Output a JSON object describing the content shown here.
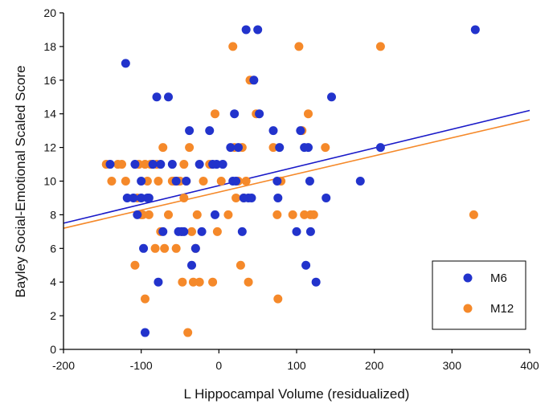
{
  "chart_data": {
    "type": "scatter",
    "title": "",
    "xlabel": "L Hippocampal Volume (residualized)",
    "ylabel": "Bayley Social-Emotional Scaled Score",
    "xlim": [
      -200,
      400
    ],
    "ylim": [
      0,
      20
    ],
    "xticks": [
      -200,
      -100,
      0,
      100,
      200,
      300,
      400
    ],
    "yticks": [
      0,
      2,
      4,
      6,
      8,
      10,
      12,
      14,
      16,
      18,
      20
    ],
    "x_tick_labels": [
      "-200",
      "-100",
      "0",
      "100",
      "200",
      "300",
      "400"
    ],
    "y_tick_labels": [
      "0",
      "2",
      "4",
      "6",
      "8",
      "10",
      "12",
      "14",
      "16",
      "18",
      "20"
    ],
    "grid": false,
    "legend_position": "bottom-right",
    "series": [
      {
        "name": "M6",
        "color": "#2233cc",
        "points": [
          [
            -140,
            11
          ],
          [
            -120,
            17
          ],
          [
            -118,
            9
          ],
          [
            -110,
            9
          ],
          [
            -108,
            11
          ],
          [
            -105,
            8
          ],
          [
            -100,
            10
          ],
          [
            -100,
            9
          ],
          [
            -97,
            6
          ],
          [
            -95,
            1
          ],
          [
            -92,
            9
          ],
          [
            -90,
            9
          ],
          [
            -85,
            11
          ],
          [
            -80,
            15
          ],
          [
            -78,
            4
          ],
          [
            -75,
            11
          ],
          [
            -72,
            7
          ],
          [
            -65,
            15
          ],
          [
            -60,
            11
          ],
          [
            -55,
            10
          ],
          [
            -52,
            7
          ],
          [
            -48,
            7
          ],
          [
            -45,
            7
          ],
          [
            -42,
            10
          ],
          [
            -38,
            13
          ],
          [
            -35,
            5
          ],
          [
            -30,
            6
          ],
          [
            -25,
            11
          ],
          [
            -22,
            7
          ],
          [
            -12,
            13
          ],
          [
            -8,
            11
          ],
          [
            -5,
            8
          ],
          [
            -3,
            11
          ],
          [
            5,
            11
          ],
          [
            15,
            12
          ],
          [
            18,
            10
          ],
          [
            20,
            14
          ],
          [
            22,
            10
          ],
          [
            25,
            12
          ],
          [
            30,
            7
          ],
          [
            32,
            9
          ],
          [
            35,
            19
          ],
          [
            38,
            9
          ],
          [
            42,
            9
          ],
          [
            45,
            16
          ],
          [
            50,
            19
          ],
          [
            52,
            14
          ],
          [
            70,
            13
          ],
          [
            75,
            10
          ],
          [
            76,
            9
          ],
          [
            78,
            12
          ],
          [
            100,
            7
          ],
          [
            105,
            13
          ],
          [
            110,
            12
          ],
          [
            112,
            5
          ],
          [
            115,
            12
          ],
          [
            117,
            10
          ],
          [
            118,
            7
          ],
          [
            125,
            4
          ],
          [
            138,
            9
          ],
          [
            145,
            15
          ],
          [
            182,
            10
          ],
          [
            208,
            12
          ],
          [
            330,
            19
          ]
        ]
      },
      {
        "name": "M12",
        "color": "#f5892a",
        "points": [
          [
            -145,
            11
          ],
          [
            -138,
            10
          ],
          [
            -130,
            11
          ],
          [
            -125,
            11
          ],
          [
            -120,
            10
          ],
          [
            -108,
            5
          ],
          [
            -105,
            9
          ],
          [
            -103,
            11
          ],
          [
            -100,
            8
          ],
          [
            -98,
            8
          ],
          [
            -95,
            3
          ],
          [
            -95,
            11
          ],
          [
            -92,
            10
          ],
          [
            -90,
            8
          ],
          [
            -88,
            11
          ],
          [
            -82,
            6
          ],
          [
            -80,
            11
          ],
          [
            -78,
            10
          ],
          [
            -75,
            7
          ],
          [
            -72,
            12
          ],
          [
            -70,
            6
          ],
          [
            -65,
            8
          ],
          [
            -60,
            10
          ],
          [
            -58,
            10
          ],
          [
            -55,
            6
          ],
          [
            -52,
            10
          ],
          [
            -50,
            10
          ],
          [
            -48,
            7
          ],
          [
            -47,
            4
          ],
          [
            -45,
            11
          ],
          [
            -45,
            9
          ],
          [
            -42,
            10
          ],
          [
            -40,
            1
          ],
          [
            -38,
            12
          ],
          [
            -35,
            7
          ],
          [
            -33,
            4
          ],
          [
            -30,
            6
          ],
          [
            -28,
            8
          ],
          [
            -25,
            4
          ],
          [
            -20,
            10
          ],
          [
            -12,
            11
          ],
          [
            -8,
            4
          ],
          [
            -5,
            14
          ],
          [
            -2,
            7
          ],
          [
            3,
            10
          ],
          [
            12,
            8
          ],
          [
            18,
            18
          ],
          [
            20,
            12
          ],
          [
            22,
            9
          ],
          [
            25,
            10
          ],
          [
            28,
            5
          ],
          [
            30,
            12
          ],
          [
            32,
            9
          ],
          [
            35,
            10
          ],
          [
            38,
            4
          ],
          [
            40,
            16
          ],
          [
            48,
            14
          ],
          [
            70,
            12
          ],
          [
            75,
            8
          ],
          [
            76,
            3
          ],
          [
            80,
            10
          ],
          [
            95,
            8
          ],
          [
            103,
            18
          ],
          [
            107,
            13
          ],
          [
            110,
            8
          ],
          [
            115,
            14
          ],
          [
            118,
            8
          ],
          [
            122,
            8
          ],
          [
            137,
            12
          ],
          [
            208,
            18
          ],
          [
            328,
            8
          ]
        ]
      }
    ],
    "trendlines": [
      {
        "series": "M6",
        "color": "#1a1ac8",
        "x": [
          -200,
          400
        ],
        "y": [
          7.5,
          14.2
        ]
      },
      {
        "series": "M12",
        "color": "#f5892a",
        "x": [
          -200,
          400
        ],
        "y": [
          7.2,
          13.65
        ]
      }
    ]
  }
}
